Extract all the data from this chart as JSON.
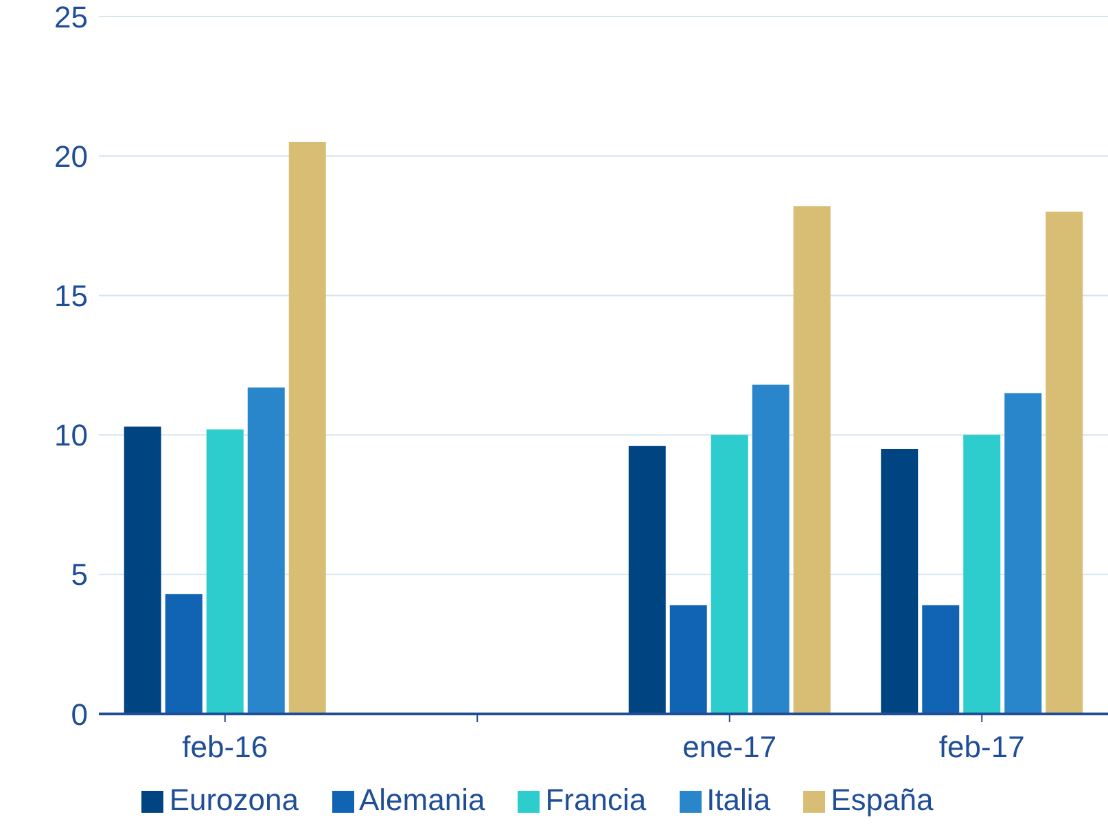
{
  "chart_data": {
    "type": "bar",
    "categories": [
      "feb-16",
      null,
      "ene-17",
      "feb-17"
    ],
    "series": [
      {
        "name": "Eurozona",
        "color": "#004481",
        "values": [
          10.3,
          null,
          9.6,
          9.5
        ]
      },
      {
        "name": "Alemania",
        "color": "#1164b4",
        "values": [
          4.3,
          null,
          3.9,
          3.9
        ]
      },
      {
        "name": "Francia",
        "color": "#2dcccd",
        "values": [
          10.2,
          null,
          10.0,
          10.0
        ]
      },
      {
        "name": "Italia",
        "color": "#2a86ca",
        "values": [
          11.7,
          null,
          11.8,
          11.5
        ]
      },
      {
        "name": "España",
        "color": "#d8be75",
        "values": [
          20.5,
          null,
          18.2,
          18.0
        ]
      }
    ],
    "ylim": [
      0,
      25
    ],
    "yticks": [
      0,
      5,
      10,
      15,
      20,
      25
    ],
    "grid": "y",
    "legend": "bottom"
  }
}
